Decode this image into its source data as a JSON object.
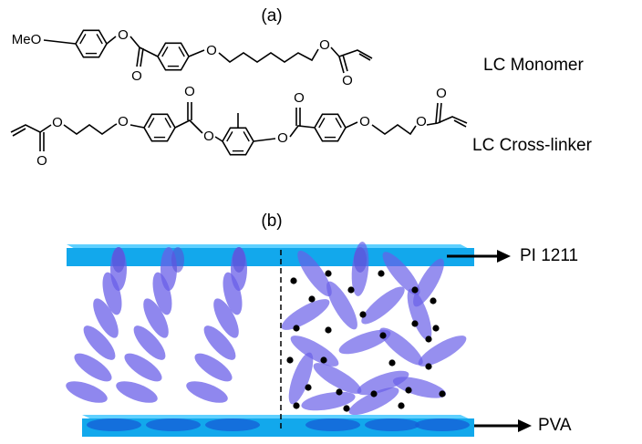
{
  "panel_a": {
    "label": "(a)",
    "monomer": {
      "name": "LC Monomer",
      "atoms": [
        "MeO",
        "O",
        "O",
        "O",
        "O",
        "O"
      ]
    },
    "cross_linker": {
      "name": "LC Cross-linker",
      "atoms": [
        "O",
        "O",
        "O",
        "O",
        "O",
        "O",
        "O",
        "O",
        "O",
        "O"
      ]
    }
  },
  "panel_b": {
    "label": "(b)",
    "top_layer": "PI 1211",
    "bottom_layer": "PVA"
  }
}
